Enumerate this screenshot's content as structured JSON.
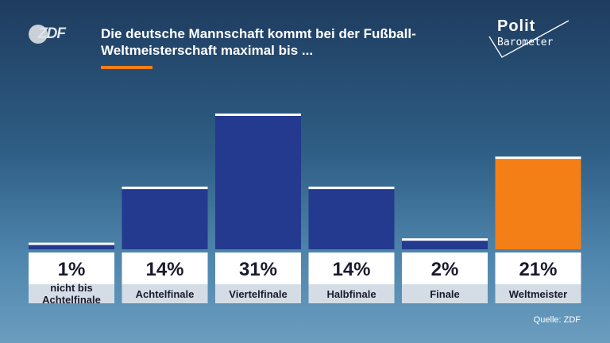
{
  "header": {
    "logo_text": "ZDF",
    "title": "Die deutsche Mannschaft kommt bei der Fußball-Weltmeisterschaft maximal bis ...",
    "brand_line1": "Polit",
    "brand_line2": "Barometer"
  },
  "footer": {
    "source": "Quelle: ZDF"
  },
  "colors": {
    "bar_default": "#233a8f",
    "bar_highlight": "#f57f17",
    "accent": "#f57f17",
    "label_bg": "#ffffff",
    "category_bg": "#d4dde5"
  },
  "chart_data": {
    "type": "bar",
    "title": "Die deutsche Mannschaft kommt bei der Fußball-Weltmeisterschaft maximal bis ...",
    "categories": [
      "nicht bis Achtelfinale",
      "Achtelfinale",
      "Viertelfinale",
      "Halbfinale",
      "Finale",
      "Weltmeister"
    ],
    "values": [
      1,
      14,
      31,
      14,
      2,
      21
    ],
    "value_labels": [
      "1%",
      "14%",
      "31%",
      "14%",
      "2%",
      "21%"
    ],
    "highlight": "Weltmeister",
    "unit": "%",
    "ylim": [
      0,
      31
    ],
    "grid": false,
    "legend": "none"
  }
}
